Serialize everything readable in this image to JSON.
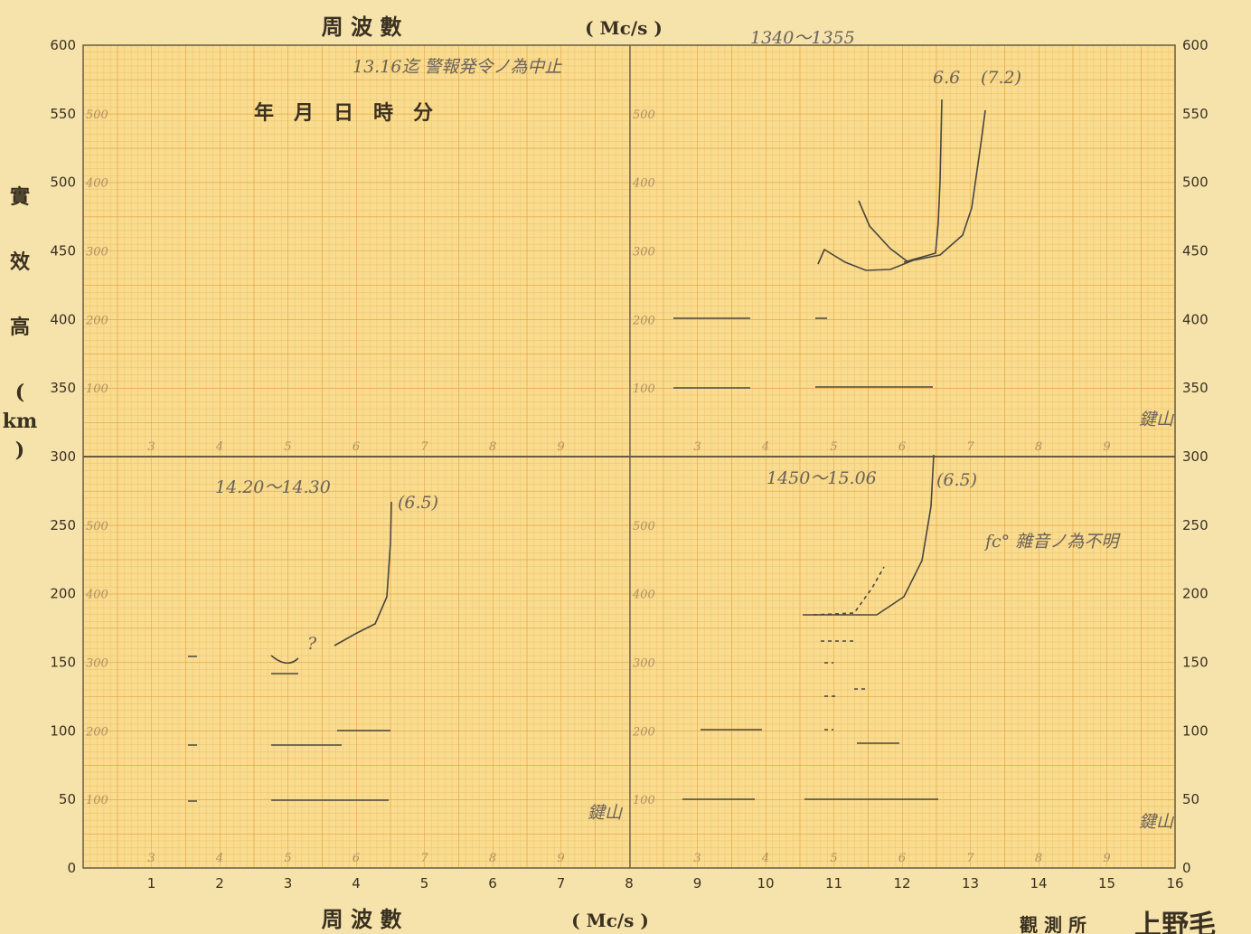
{
  "header": {
    "title": "周 波 數",
    "unit": "( Mc/s )",
    "date_label": "年　月　日　時　分"
  },
  "y_axis": {
    "label": [
      "實",
      "效",
      "高",
      "(",
      "km",
      ")"
    ],
    "left_ticks": [
      "0",
      "50",
      "100",
      "150",
      "200",
      "250",
      "300",
      "350",
      "400",
      "450",
      "500",
      "550",
      "600"
    ],
    "right_ticks": [
      "0",
      "50",
      "100",
      "150",
      "200",
      "250",
      "300",
      "350",
      "400",
      "450",
      "500",
      "550",
      "600"
    ]
  },
  "x_axis": {
    "ticks": [
      "1",
      "2",
      "3",
      "4",
      "5",
      "6",
      "7",
      "8",
      "9",
      "10",
      "11",
      "12",
      "13",
      "14",
      "15",
      "16"
    ],
    "title": "周 波 數",
    "unit": "( Mc/s )"
  },
  "sub_scale": {
    "heights": [
      "100",
      "200",
      "300",
      "400",
      "500"
    ],
    "freqs": [
      "3",
      "4",
      "5",
      "6",
      "7",
      "8",
      "9"
    ]
  },
  "footer": {
    "observatory": "觀 測 所",
    "station": "上野毛"
  },
  "notes": {
    "stop": "13.16迄 警報発令ノ為中止",
    "time_1": "1340～1355",
    "time_2": "14.20～14.30",
    "time_3": "1450～15.06",
    "f_66": "6.6",
    "f_72": "(7.2)",
    "f_65a": "(6.5)",
    "f_65b": "(6.5)",
    "noise": "fc° 雜音ノ為不明",
    "place": "鍵山",
    "question": "?"
  }
}
